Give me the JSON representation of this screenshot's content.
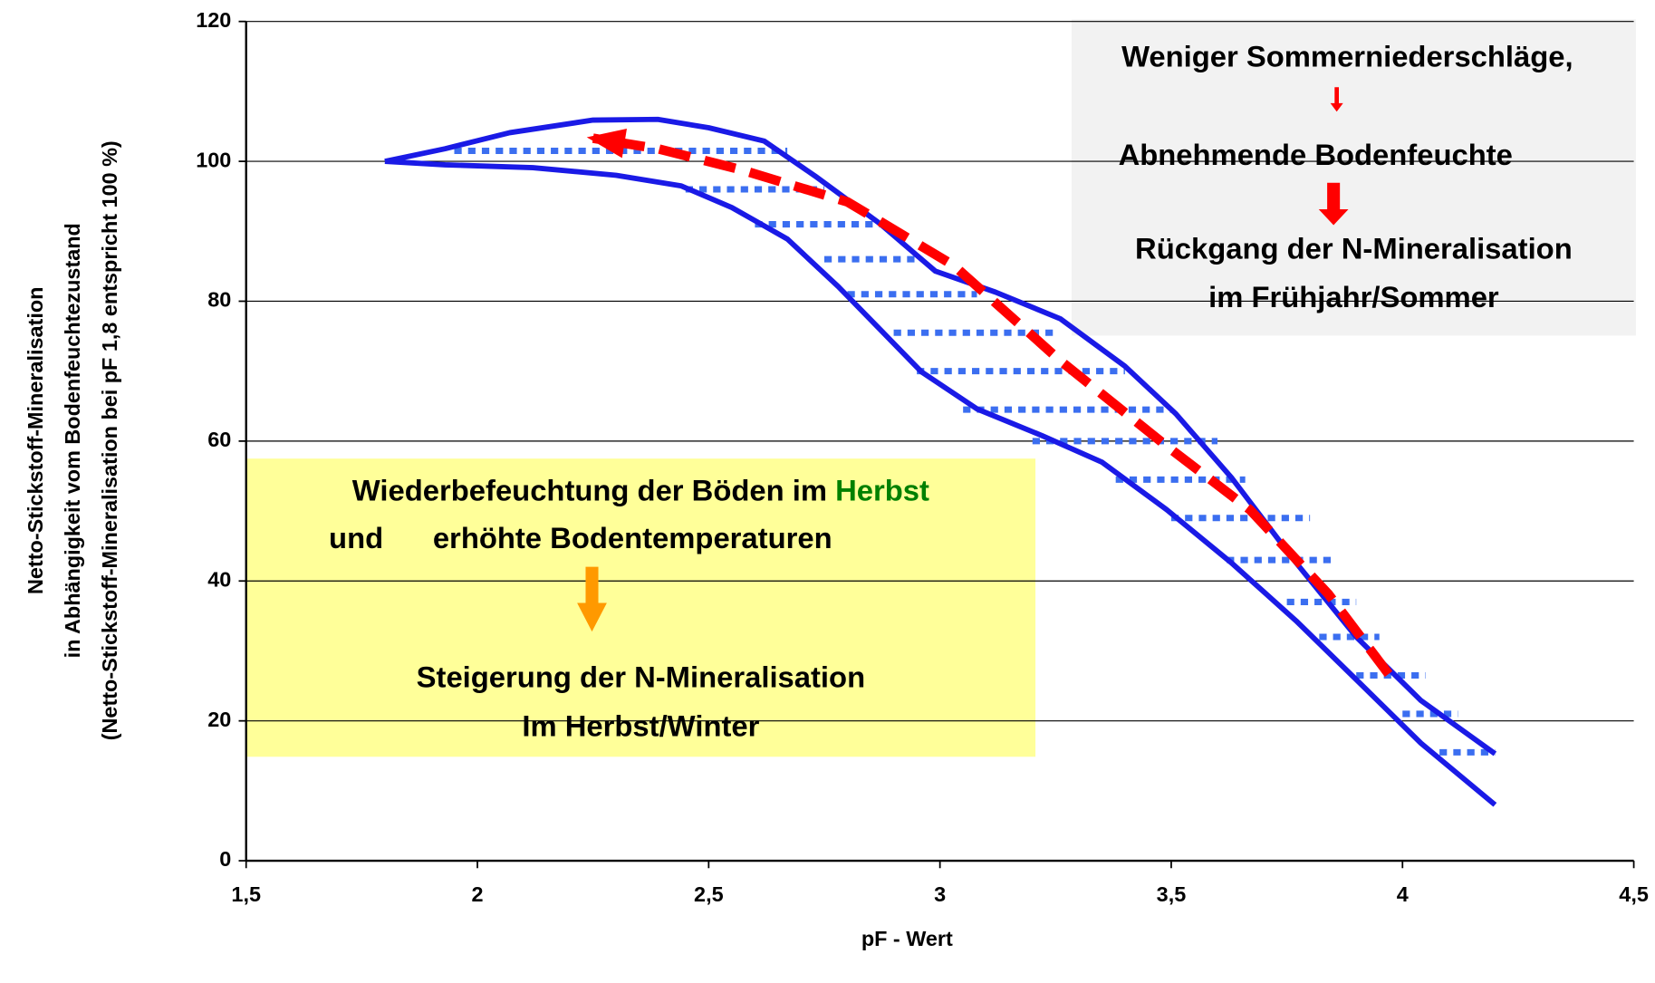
{
  "chart_data": {
    "type": "line",
    "xlabel": "pF - Wert",
    "ylabel": [
      "Netto-Stickstoff-Mineralisation",
      "in Abhängigkeit vom Bodenfeuchtezustand",
      "(Netto-Stickstoff-Mineralisation bei pF 1,8 entspricht 100 %)"
    ],
    "xlim": [
      1.5,
      4.5
    ],
    "xticks": [
      {
        "value": 1.5,
        "label": "1,5"
      },
      2,
      {
        "value": 2.5,
        "label": "2,5"
      },
      3,
      {
        "value": 3.5,
        "label": "3,5"
      },
      4,
      {
        "value": 4.5,
        "label": "4,5"
      }
    ],
    "ylim": [
      0,
      120
    ],
    "yticks": [
      0,
      20,
      40,
      60,
      80,
      100,
      120
    ],
    "grid": true,
    "series": [
      {
        "color": "#1a1ae6",
        "x": [
          1.8,
          1.93,
          2.07,
          2.25,
          2.39,
          2.5,
          2.62,
          2.73,
          2.87,
          2.99,
          3.12,
          3.26,
          3.4,
          3.51,
          3.63,
          3.77,
          3.9,
          4.04,
          4.2
        ],
        "y": [
          100,
          101.8,
          104.1,
          105.9,
          106,
          104.8,
          102.9,
          97.9,
          91.1,
          84.3,
          81.3,
          77.5,
          70.7,
          63.9,
          54.8,
          42.6,
          32,
          22.9,
          15.3
        ]
      },
      {
        "color": "#1a1ae6",
        "x": [
          1.8,
          1.93,
          2.12,
          2.3,
          2.44,
          2.55,
          2.67,
          2.78,
          2.87,
          2.96,
          3.08,
          3.22,
          3.35,
          3.49,
          3.63,
          3.77,
          3.9,
          4.04,
          4.2
        ],
        "y": [
          100,
          99.5,
          99.1,
          98,
          96.5,
          93.4,
          88.9,
          82.1,
          76,
          69.9,
          64.6,
          60.8,
          57,
          50.2,
          42.6,
          34.3,
          25.9,
          16.8,
          8
        ]
      }
    ],
    "hatch": {
      "color": "#3b6ef0",
      "y": [
        101.5,
        96,
        91,
        86,
        81,
        75.5,
        70,
        64.5,
        60,
        54.5,
        49,
        43,
        37,
        32,
        26.5,
        21,
        15.5
      ],
      "x_start": [
        1.95,
        2.45,
        2.6,
        2.75,
        2.8,
        2.9,
        2.95,
        3.05,
        3.2,
        3.38,
        3.5,
        3.62,
        3.75,
        3.82,
        3.9,
        4.0,
        4.08
      ],
      "x_end": [
        2.67,
        2.75,
        2.87,
        2.95,
        3.08,
        3.25,
        3.4,
        3.5,
        3.6,
        3.66,
        3.8,
        3.85,
        3.9,
        3.95,
        4.05,
        4.12,
        4.2
      ]
    },
    "trend": {
      "color": "#ff0000",
      "x": [
        3.97,
        3.84,
        3.67,
        3.49,
        3.26,
        3.03,
        2.8,
        2.57,
        2.39,
        2.25
      ],
      "y": [
        26.7,
        38.1,
        50.2,
        59.3,
        71.5,
        85.1,
        94.2,
        98.8,
        101.8,
        103.3
      ]
    },
    "annotations": {
      "summer": [
        "Weniger Sommerniederschläge,",
        "Abnehmende Bodenfeuchte",
        "Rückgang der N-Mineralisation",
        "im Frühjahr/Sommer"
      ],
      "autumn": {
        "line1": "Wiederbefeuchtung der Böden im ",
        "line1_highlight": "Herbst",
        "line2_highlight": "und",
        "line2": "erhöhte Bodentemperaturen",
        "line3": "Steigerung der N-Mineralisation",
        "line4": "Im Herbst/Winter"
      }
    }
  }
}
